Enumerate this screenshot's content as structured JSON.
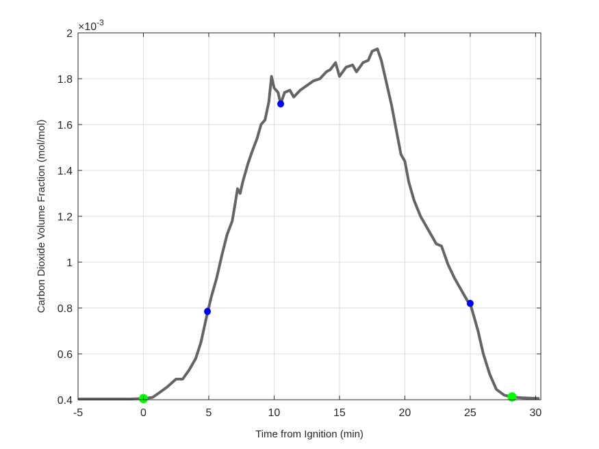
{
  "chart_data": {
    "type": "line",
    "xlabel": "Time from Ignition (min)",
    "ylabel": "Carbon Dioxide Volume Fraction (mol/mol)",
    "y_exponent_label": "×10",
    "y_exponent": "-3",
    "xlim": [
      -5,
      30.4
    ],
    "ylim": [
      0.4,
      2.0
    ],
    "grid": true,
    "xticks": [
      "-5",
      "0",
      "5",
      "10",
      "15",
      "20",
      "25",
      "30"
    ],
    "yticks": [
      "0.4",
      "0.6",
      "0.8",
      "1",
      "1.2",
      "1.4",
      "1.6",
      "1.8",
      "2"
    ],
    "line_color": "#646464",
    "series": [
      {
        "x": [
          -5,
          -1,
          0,
          0.7,
          1.2,
          1.8,
          2.5,
          3,
          3.5,
          4,
          4.4,
          4.9,
          5.2,
          5.6,
          6.0,
          6.4,
          6.8,
          7.0,
          7.2,
          7.4,
          7.6,
          8.0,
          8.3,
          8.7,
          9.0,
          9.3,
          9.6,
          9.8,
          10.0,
          10.3,
          10.5,
          10.8,
          11.2,
          11.5,
          12.0,
          12.5,
          13.0,
          13.5,
          14.0,
          14.3,
          14.7,
          15.0,
          15.5,
          16.0,
          16.3,
          16.8,
          17.2,
          17.5,
          17.9,
          18.2,
          18.6,
          19.0,
          19.4,
          19.7,
          20.0,
          20.3,
          20.7,
          21.2,
          21.7,
          22.0,
          22.4,
          22.8,
          23.3,
          23.8,
          24.3,
          24.8,
          25.0,
          25.3,
          25.6,
          26.0,
          26.5,
          27.0,
          27.6,
          28.2,
          29.0,
          30.3
        ],
        "y": [
          0.403,
          0.403,
          0.405,
          0.41,
          0.43,
          0.455,
          0.49,
          0.49,
          0.53,
          0.58,
          0.65,
          0.78,
          0.85,
          0.93,
          1.03,
          1.12,
          1.18,
          1.25,
          1.32,
          1.3,
          1.35,
          1.43,
          1.48,
          1.54,
          1.6,
          1.62,
          1.7,
          1.81,
          1.76,
          1.74,
          1.69,
          1.74,
          1.75,
          1.72,
          1.75,
          1.77,
          1.79,
          1.8,
          1.83,
          1.84,
          1.87,
          1.81,
          1.85,
          1.86,
          1.83,
          1.87,
          1.88,
          1.92,
          1.93,
          1.88,
          1.78,
          1.68,
          1.56,
          1.47,
          1.44,
          1.35,
          1.27,
          1.2,
          1.15,
          1.12,
          1.08,
          1.07,
          0.99,
          0.93,
          0.88,
          0.83,
          0.82,
          0.76,
          0.7,
          0.6,
          0.51,
          0.445,
          0.42,
          0.412,
          0.408,
          0.405
        ]
      }
    ],
    "markers": [
      {
        "x": 0,
        "y": 0.405,
        "color": "#00ff00"
      },
      {
        "x": 28.2,
        "y": 0.412,
        "color": "#00ff00"
      },
      {
        "x": 4.9,
        "y": 0.785,
        "color": "#0000ff"
      },
      {
        "x": 10.5,
        "y": 1.69,
        "color": "#0000ff"
      },
      {
        "x": 25.0,
        "y": 0.82,
        "color": "#0000ff"
      }
    ]
  }
}
